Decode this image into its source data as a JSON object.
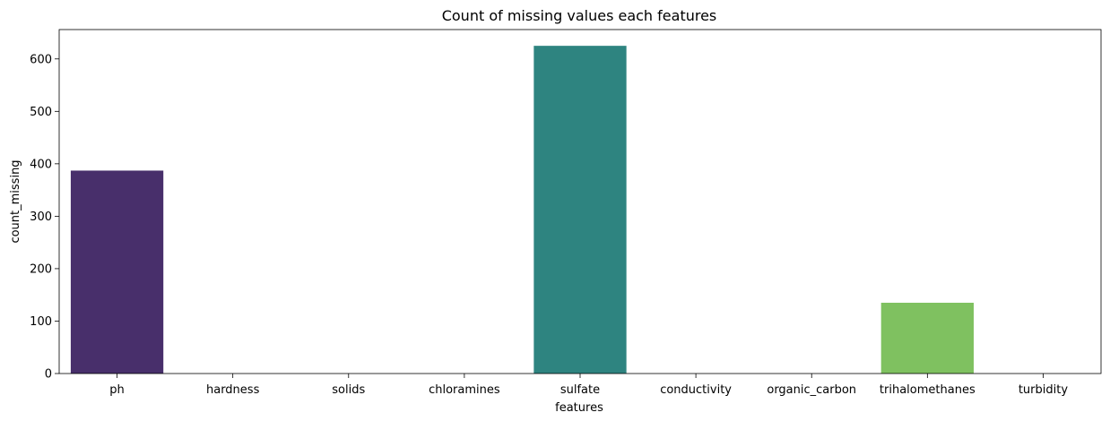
{
  "chart_data": {
    "type": "bar",
    "title": "Count of missing values each features",
    "xlabel": "features",
    "ylabel": "count_missing",
    "categories": [
      "ph",
      "hardness",
      "solids",
      "chloramines",
      "sulfate",
      "conductivity",
      "organic_carbon",
      "trihalomethanes",
      "turbidity"
    ],
    "values": [
      387,
      0,
      0,
      0,
      625,
      0,
      0,
      135,
      0
    ],
    "colors": [
      "#482f6b",
      "#443983",
      "#3b528b",
      "#31688e",
      "#2e8480",
      "#21918c",
      "#35b779",
      "#7fc160",
      "#bddf26"
    ],
    "ylim": [
      0,
      656
    ],
    "yticks": [
      0,
      100,
      200,
      300,
      400,
      500,
      600
    ],
    "grid": false,
    "legend": "none"
  }
}
